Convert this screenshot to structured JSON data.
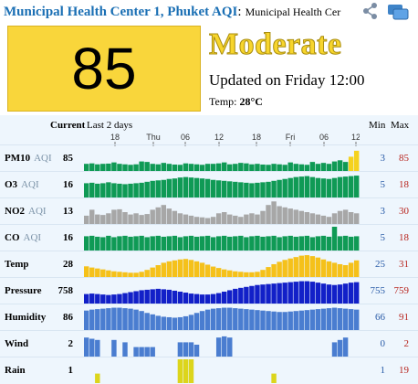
{
  "header": {
    "title": "Municipal Health Center 1, Phuket AQI",
    "colon": ":",
    "station": "Municipal Health Cer"
  },
  "icons": {
    "share": "share-icon",
    "window": "windows-icon"
  },
  "aqi": {
    "value": "85",
    "category": "Moderate",
    "updated": "Updated on Friday 12:00",
    "temp_label": "Temp:",
    "temp_value": "28°C",
    "color": "#f9d63b"
  },
  "table": {
    "current_header": "Current",
    "period_header": "Last 2 days",
    "min_header": "Min",
    "max_header": "Max",
    "aqi_tag": "AQI",
    "time_ticks": [
      "18",
      "Thu",
      "06",
      "12",
      "18",
      "Fri",
      "06",
      "12"
    ],
    "rows": [
      {
        "label": "PM10",
        "aqi": true,
        "current": "85",
        "min": "3",
        "max": "85",
        "color": "#0f9a55",
        "values": [
          30,
          32,
          28,
          30,
          31,
          36,
          30,
          28,
          26,
          28,
          40,
          38,
          30,
          28,
          34,
          30,
          27,
          26,
          32,
          30,
          28,
          26,
          30,
          30,
          32,
          36,
          28,
          30,
          34,
          32,
          28,
          30,
          27,
          26,
          30,
          28,
          26,
          36,
          30,
          28,
          26,
          38,
          30,
          34,
          30,
          40,
          45,
          38,
          60,
          85
        ]
      },
      {
        "label": "O3",
        "aqi": true,
        "current": "16",
        "min": "5",
        "max": "18",
        "color": "#0f9a55",
        "values": [
          60,
          62,
          58,
          60,
          64,
          60,
          58,
          56,
          58,
          60,
          62,
          66,
          70,
          72,
          74,
          78,
          80,
          84,
          86,
          84,
          82,
          80,
          78,
          74,
          72,
          70,
          68,
          66,
          64,
          62,
          60,
          62,
          64,
          66,
          70,
          74,
          78,
          82,
          86,
          88,
          90,
          86,
          82,
          80,
          78,
          82,
          86,
          88,
          90,
          92
        ]
      },
      {
        "label": "NO2",
        "aqi": true,
        "current": "13",
        "min": "3",
        "max": "30",
        "color": "#a7a7a7",
        "values": [
          35,
          60,
          40,
          38,
          45,
          60,
          62,
          50,
          40,
          45,
          38,
          42,
          60,
          70,
          80,
          65,
          55,
          45,
          40,
          35,
          30,
          28,
          25,
          30,
          45,
          50,
          40,
          35,
          30,
          40,
          45,
          40,
          55,
          80,
          95,
          75,
          70,
          65,
          60,
          55,
          50,
          45,
          40,
          35,
          30,
          45,
          55,
          60,
          50,
          45
        ]
      },
      {
        "label": "CO",
        "aqi": true,
        "current": "16",
        "min": "5",
        "max": "18",
        "color": "#0f9a55",
        "values": [
          60,
          62,
          58,
          56,
          62,
          56,
          60,
          62,
          58,
          60,
          62,
          56,
          60,
          62,
          58,
          60,
          62,
          56,
          60,
          62,
          58,
          60,
          62,
          56,
          60,
          62,
          58,
          60,
          62,
          56,
          60,
          62,
          58,
          60,
          62,
          56,
          60,
          62,
          58,
          60,
          62,
          56,
          60,
          62,
          58,
          100,
          60,
          62,
          58,
          60
        ]
      },
      {
        "label": "Temp",
        "aqi": false,
        "current": "28",
        "min": "25",
        "max": "31",
        "color": "#f5c11a",
        "values": [
          45,
          40,
          36,
          32,
          28,
          24,
          22,
          20,
          18,
          18,
          22,
          30,
          40,
          50,
          60,
          66,
          70,
          74,
          76,
          72,
          66,
          60,
          52,
          44,
          38,
          32,
          28,
          24,
          22,
          20,
          20,
          22,
          30,
          42,
          54,
          64,
          72,
          78,
          84,
          90,
          92,
          88,
          82,
          74,
          66,
          60,
          54,
          50,
          60,
          70
        ]
      },
      {
        "label": "Pressure",
        "aqi": false,
        "current": "758",
        "min": "755",
        "max": "759",
        "color": "#1220c8",
        "values": [
          40,
          42,
          40,
          38,
          36,
          38,
          40,
          44,
          48,
          52,
          56,
          58,
          60,
          62,
          60,
          58,
          54,
          50,
          46,
          42,
          40,
          38,
          38,
          40,
          44,
          50,
          56,
          62,
          66,
          70,
          74,
          78,
          80,
          82,
          84,
          86,
          88,
          90,
          92,
          94,
          94,
          92,
          88,
          84,
          80,
          78,
          80,
          84,
          88,
          90
        ]
      },
      {
        "label": "Humidity",
        "aqi": false,
        "current": "86",
        "min": "66",
        "max": "91",
        "color": "#4a7dd0",
        "values": [
          82,
          86,
          88,
          90,
          92,
          94,
          94,
          92,
          90,
          86,
          80,
          72,
          66,
          60,
          56,
          54,
          52,
          54,
          58,
          64,
          72,
          80,
          86,
          90,
          92,
          94,
          94,
          92,
          90,
          88,
          86,
          84,
          82,
          80,
          78,
          76,
          76,
          78,
          80,
          82,
          84,
          86,
          88,
          90,
          92,
          94,
          92,
          90,
          88,
          86
        ]
      },
      {
        "label": "Wind",
        "aqi": false,
        "current": "2",
        "min": "0",
        "max": "2",
        "color": "#4a7dd0",
        "values": [
          80,
          75,
          70,
          0,
          0,
          70,
          0,
          60,
          0,
          40,
          40,
          40,
          40,
          0,
          0,
          0,
          0,
          60,
          60,
          60,
          50,
          0,
          0,
          0,
          80,
          85,
          80,
          0,
          0,
          0,
          0,
          0,
          0,
          0,
          0,
          0,
          0,
          0,
          0,
          0,
          0,
          0,
          0,
          0,
          0,
          60,
          70,
          80,
          0,
          0
        ]
      },
      {
        "label": "Rain",
        "aqi": false,
        "current": "1",
        "min": "1",
        "max": "19",
        "color": "#dcd51c",
        "values": [
          0,
          0,
          40,
          0,
          0,
          0,
          0,
          0,
          0,
          0,
          0,
          0,
          0,
          0,
          0,
          0,
          0,
          100,
          100,
          100,
          0,
          0,
          0,
          0,
          0,
          0,
          0,
          0,
          0,
          0,
          0,
          0,
          0,
          0,
          40,
          0,
          0,
          0,
          0,
          0,
          0,
          0,
          0,
          0,
          0,
          0,
          0,
          0,
          0,
          0
        ]
      }
    ]
  }
}
